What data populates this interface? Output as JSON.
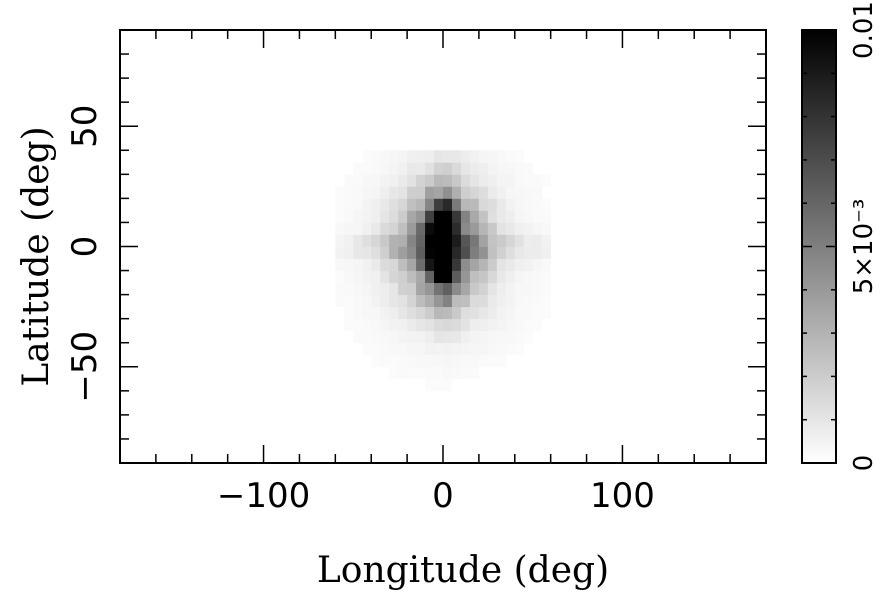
{
  "chart_data": {
    "type": "heatmap",
    "xlabel": "Longitude (deg)",
    "ylabel": "Latitude (deg)",
    "xlim": [
      -180,
      180
    ],
    "ylim": [
      -90,
      90
    ],
    "xticks": [
      {
        "value": -100,
        "label": "−100"
      },
      {
        "value": 0,
        "label": "0"
      },
      {
        "value": 100,
        "label": "100"
      }
    ],
    "yticks": [
      {
        "value": -50,
        "label": "−50"
      },
      {
        "value": 0,
        "label": "0"
      },
      {
        "value": 50,
        "label": "50"
      }
    ],
    "colorbar": {
      "min": 0,
      "max": 0.01,
      "ticks": [
        {
          "value": 0,
          "label": "0"
        },
        {
          "value": 0.005,
          "label": "5×10⁻³"
        },
        {
          "value": 0.01,
          "label": "0.01"
        }
      ],
      "colormap": "white-to-black"
    },
    "peaks": [
      {
        "lon": 0,
        "lat": 10,
        "value": 0.01
      },
      {
        "lon": 0,
        "lat": -8,
        "value": 0.01
      }
    ],
    "grid": false
  }
}
